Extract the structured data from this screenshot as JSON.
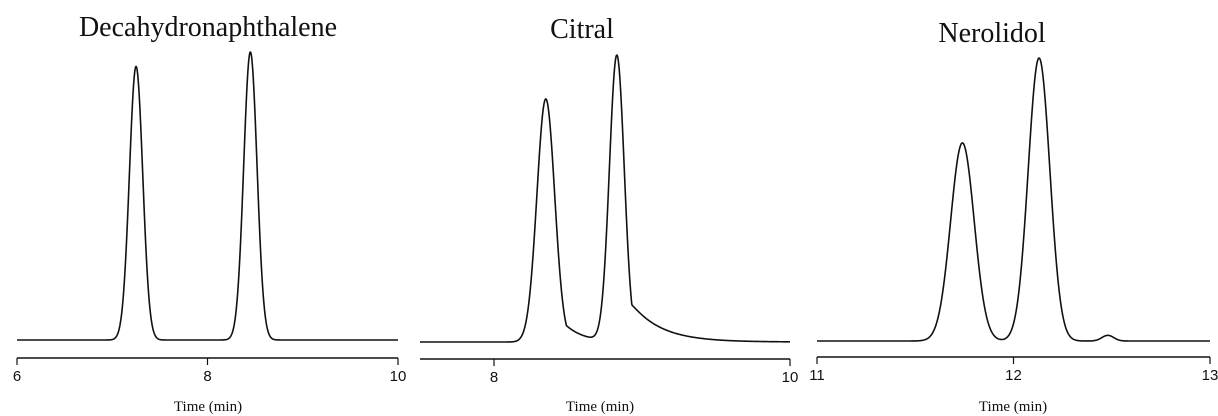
{
  "chart_data": [
    {
      "type": "line",
      "title": "Decahydronaphthalene",
      "xlabel": "Time (min)",
      "ylabel": "",
      "xlim": [
        6,
        10
      ],
      "xticks": [
        6,
        8,
        10
      ],
      "tick_labels": [
        "6",
        "8",
        "10"
      ],
      "ylim": [
        0,
        100
      ],
      "baseline": 3,
      "peaks": [
        {
          "x": 7.25,
          "height": 95,
          "width": 0.07,
          "tail": 0
        },
        {
          "x": 8.45,
          "height": 100,
          "width": 0.07,
          "tail": 0
        }
      ]
    },
    {
      "type": "line",
      "title": "Citral",
      "xlabel": "Time (min)",
      "ylabel": "",
      "xlim": [
        7.5,
        10
      ],
      "xticks": [
        8,
        10
      ],
      "tick_labels": [
        "8",
        "10"
      ],
      "ylim": [
        0,
        100
      ],
      "baseline": 3,
      "peaks": [
        {
          "x": 8.35,
          "height": 85,
          "width": 0.06,
          "tail": 0.12
        },
        {
          "x": 8.83,
          "height": 100,
          "width": 0.05,
          "tail": 0.2
        }
      ]
    },
    {
      "type": "line",
      "title": "Nerolidol",
      "xlabel": "Time (min)",
      "ylabel": "",
      "xlim": [
        11,
        13
      ],
      "xticks": [
        11,
        12,
        13
      ],
      "tick_labels": [
        "11",
        "12",
        "13"
      ],
      "ylim": [
        0,
        100
      ],
      "baseline": 3,
      "peaks": [
        {
          "x": 11.74,
          "height": 70,
          "width": 0.06,
          "tail": 0
        },
        {
          "x": 12.13,
          "height": 100,
          "width": 0.055,
          "tail": 0
        },
        {
          "x": 12.48,
          "height": 2,
          "width": 0.03,
          "tail": 0
        }
      ]
    }
  ]
}
